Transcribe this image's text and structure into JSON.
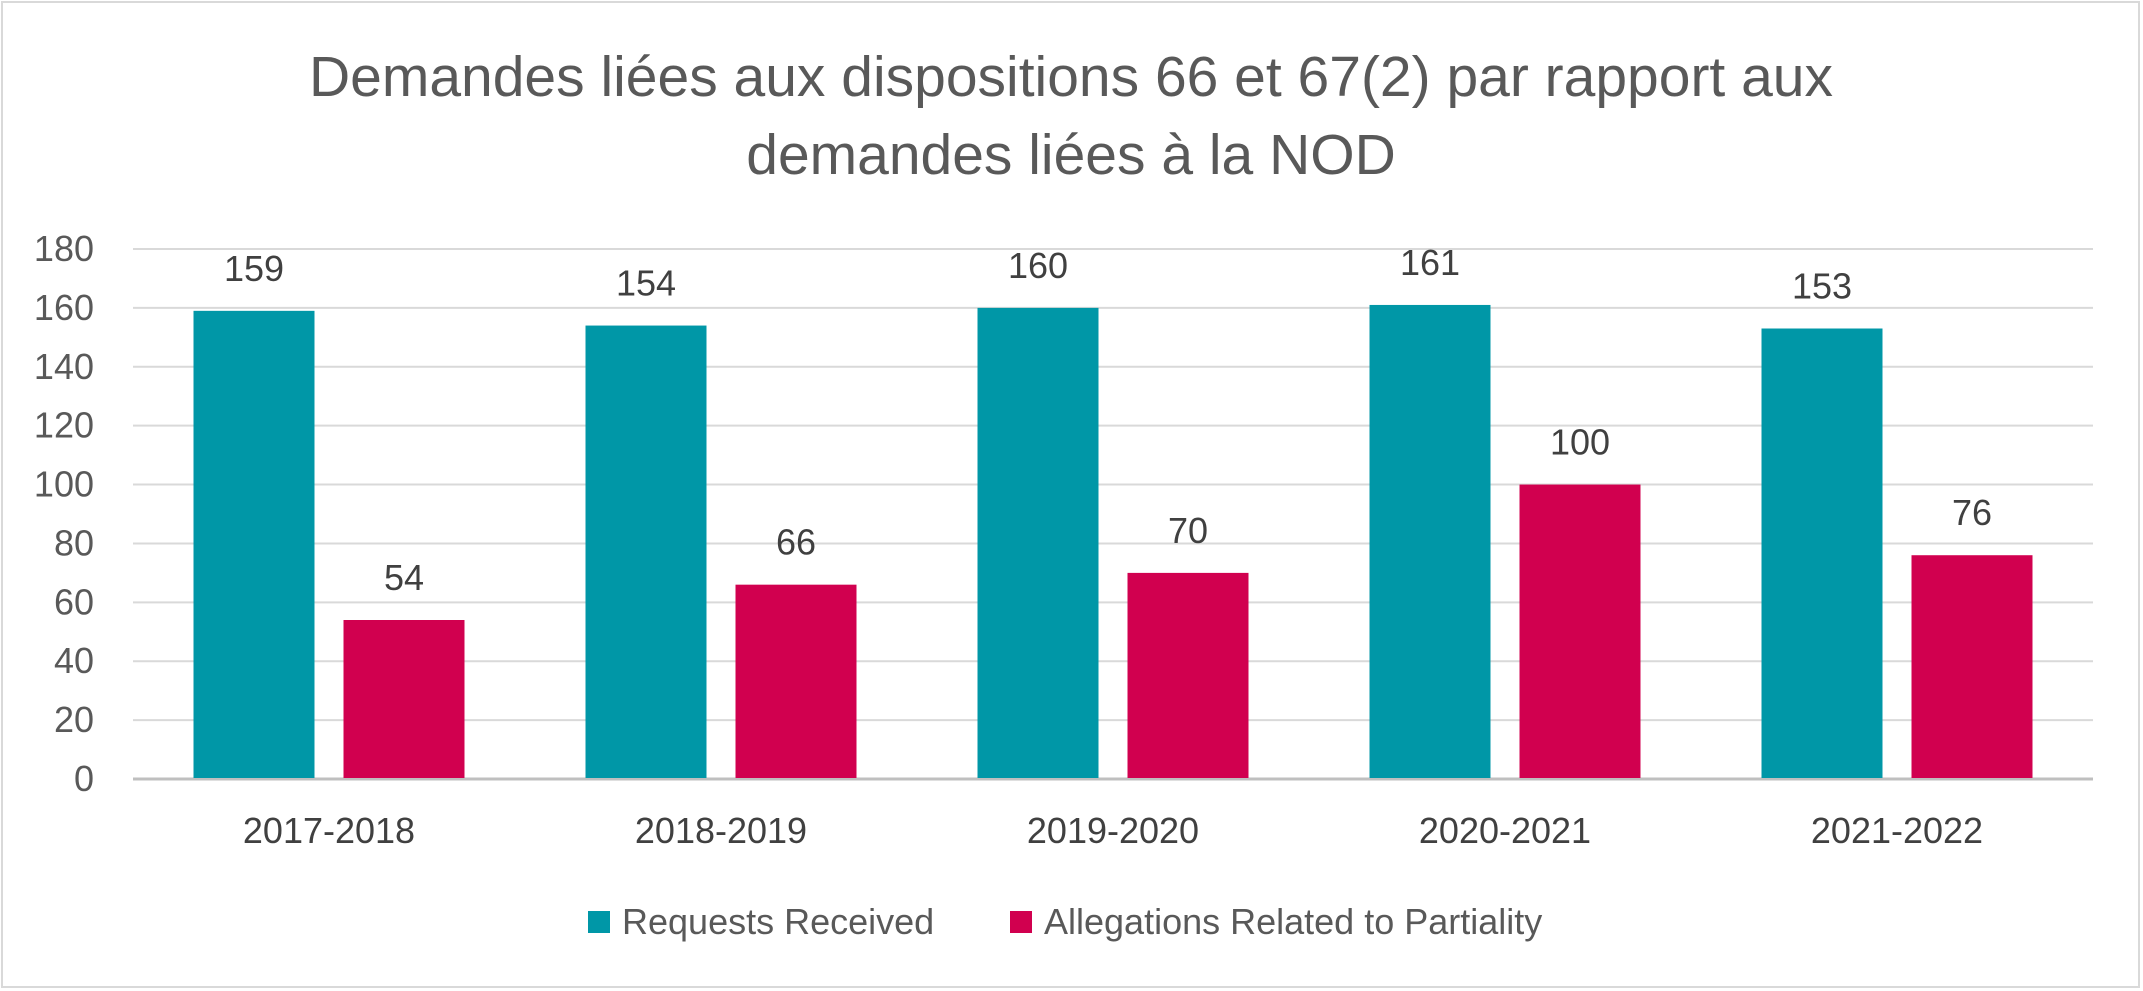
{
  "chart_data": {
    "type": "bar",
    "title_lines": [
      "Demandes liées aux dispositions 66 et 67(2) par rapport aux",
      "demandes liées à la NOD"
    ],
    "categories": [
      "2017-2018",
      "2018-2019",
      "2019-2020",
      "2020-2021",
      "2021-2022"
    ],
    "series": [
      {
        "name": "Requests Received",
        "color": "#0097a7",
        "values": [
          159,
          154,
          160,
          161,
          153
        ]
      },
      {
        "name": "Allegations Related to Partiality",
        "color": "#d1004f",
        "values": [
          54,
          66,
          70,
          100,
          76
        ]
      }
    ],
    "ylim": [
      0,
      180
    ],
    "yticks": [
      0,
      20,
      40,
      60,
      80,
      100,
      120,
      140,
      160,
      180
    ],
    "xlabel": "",
    "ylabel": "",
    "grid": true,
    "legend_position": "bottom"
  }
}
